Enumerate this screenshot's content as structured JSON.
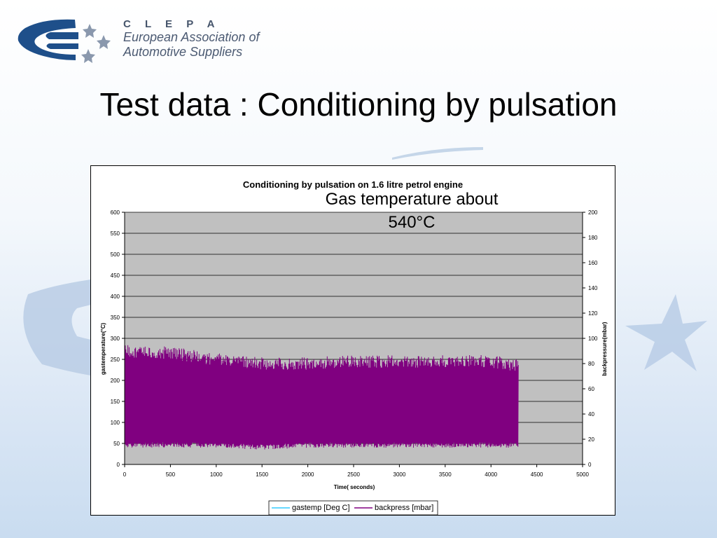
{
  "slide": {
    "title": "Test data : Conditioning by pulsation",
    "annotation_line1": "Gas temperature about",
    "annotation_line2": "540°C"
  },
  "logo": {
    "name": "C L E P A",
    "line1": "European Association of",
    "line2": "Automotive Suppliers"
  },
  "colors": {
    "plot_bg": "#c0c0c0",
    "gastemp": "#33ccff",
    "backpress": "#800080",
    "logo_blue": "#1e4f8a",
    "logo_gray": "#45546b"
  },
  "chart_data": {
    "type": "line",
    "title": "Conditioning by pulsation on 1.6 litre petrol engine",
    "xlabel": "Time( seconds)",
    "ylabel": "gastemperature(°C)",
    "y2label": "backpressure(mbar)",
    "xlim": [
      0,
      5000
    ],
    "ylim": [
      0,
      600
    ],
    "y2lim": [
      0,
      200
    ],
    "x_ticks": [
      "0",
      "500",
      "1000",
      "1500",
      "2000",
      "2500",
      "3000",
      "3500",
      "4000",
      "4500",
      "5000"
    ],
    "y_ticks": [
      "0",
      "50",
      "100",
      "150",
      "200",
      "250",
      "300",
      "350",
      "400",
      "450",
      "500",
      "550",
      "600"
    ],
    "y2_ticks": [
      "0",
      "20",
      "40",
      "60",
      "80",
      "100",
      "120",
      "140",
      "160",
      "180",
      "200"
    ],
    "grid": "horizontal",
    "legend_position": "bottom",
    "series": [
      {
        "name": "gastemp [Deg C]",
        "axis": "left",
        "color": "#33ccff",
        "values": []
      },
      {
        "name": "backpress [mbar]",
        "axis": "left",
        "color": "#800080",
        "x_range": [
          0,
          4300
        ],
        "envelope": [
          {
            "x": 0,
            "min": 40,
            "max": 285
          },
          {
            "x": 500,
            "min": 40,
            "max": 280
          },
          {
            "x": 1000,
            "min": 40,
            "max": 265
          },
          {
            "x": 1500,
            "min": 35,
            "max": 255
          },
          {
            "x": 2000,
            "min": 40,
            "max": 255
          },
          {
            "x": 2500,
            "min": 40,
            "max": 260
          },
          {
            "x": 3000,
            "min": 40,
            "max": 260
          },
          {
            "x": 3500,
            "min": 40,
            "max": 260
          },
          {
            "x": 4000,
            "min": 40,
            "max": 260
          },
          {
            "x": 4300,
            "min": 40,
            "max": 250
          }
        ]
      }
    ]
  }
}
